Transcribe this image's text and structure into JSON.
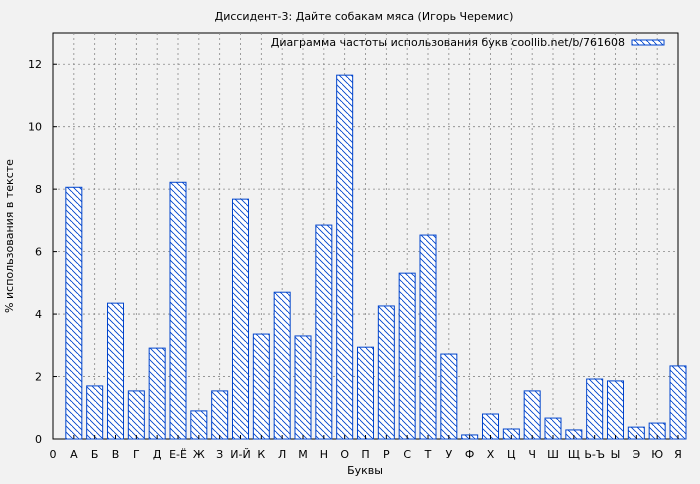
{
  "chart_data": {
    "type": "bar",
    "title": "Диссидент-3: Дайте собакам мяса (Игорь Черемис)",
    "xlabel": "Буквы",
    "ylabel": "% использования в тексте",
    "legend": {
      "label": "Диаграмма частоты использования букв coollib.net/b/761608",
      "placement": "top-right"
    },
    "x_tick_labels": [
      "0",
      "А",
      "Б",
      "В",
      "Г",
      "Д",
      "Е-Ё",
      "Ж",
      "З",
      "И-Й",
      "К",
      "Л",
      "М",
      "Н",
      "О",
      "П",
      "Р",
      "С",
      "Т",
      "У",
      "Ф",
      "Х",
      "Ц",
      "Ч",
      "Ш",
      "Щ",
      "Ь-Ъ",
      "Ы",
      "Э",
      "Ю",
      "Я"
    ],
    "categories": [
      "А",
      "Б",
      "В",
      "Г",
      "Д",
      "Е-Ё",
      "Ж",
      "З",
      "И-Й",
      "К",
      "Л",
      "М",
      "Н",
      "О",
      "П",
      "Р",
      "С",
      "Т",
      "У",
      "Ф",
      "Х",
      "Ц",
      "Ч",
      "Ш",
      "Щ",
      "Ь-Ъ",
      "Ы",
      "Э",
      "Ю",
      "Я"
    ],
    "values": [
      8.06,
      1.7,
      4.35,
      1.54,
      2.91,
      8.22,
      0.9,
      1.54,
      7.68,
      3.36,
      4.7,
      3.3,
      6.85,
      11.65,
      2.94,
      4.26,
      5.31,
      6.53,
      2.72,
      0.13,
      0.8,
      0.32,
      1.54,
      0.67,
      0.29,
      1.92,
      1.86,
      0.38,
      0.51,
      2.34
    ],
    "y_ticks": [
      0,
      2,
      4,
      6,
      8,
      10,
      12
    ],
    "ylim": [
      0,
      13
    ],
    "xlim": [
      0,
      30
    ],
    "grid": true,
    "bar_color": "#0044cc",
    "bar_fill": "hatched"
  }
}
